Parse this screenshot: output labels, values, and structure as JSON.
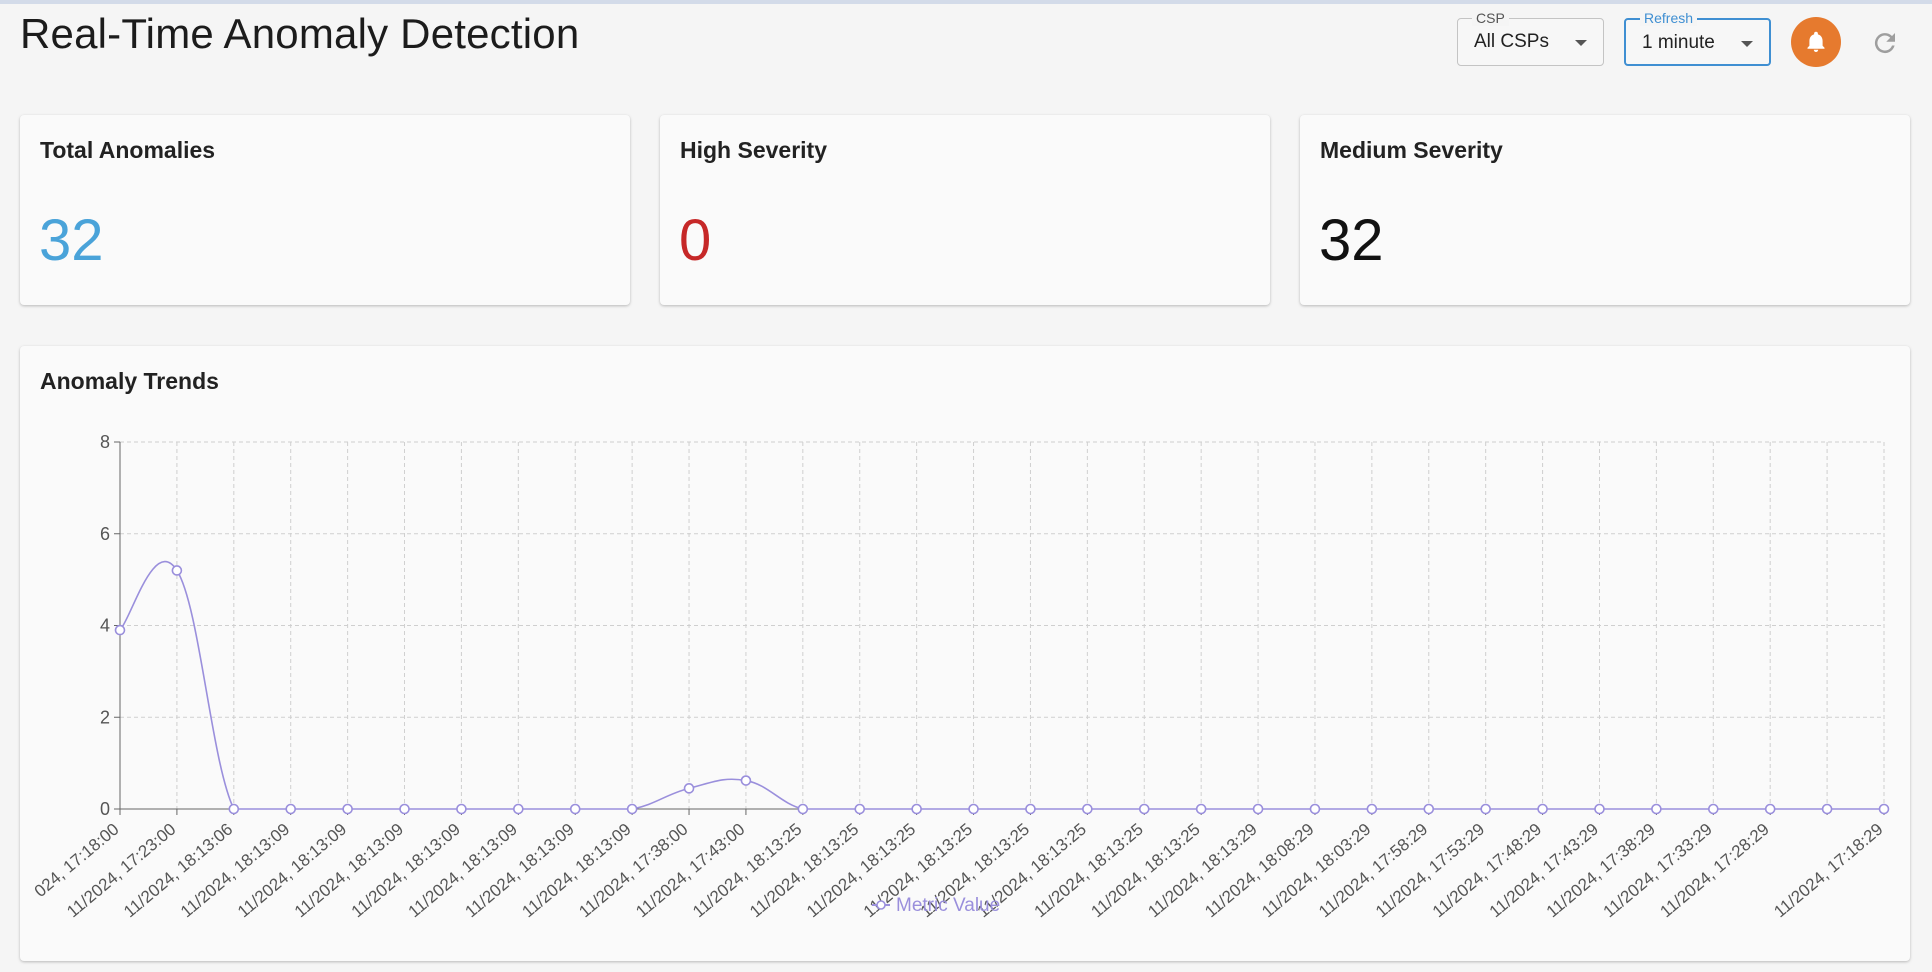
{
  "header": {
    "title": "Real-Time Anomaly Detection",
    "csp_select": {
      "legend": "CSP",
      "value": "All CSPs"
    },
    "refresh_select": {
      "legend": "Refresh",
      "value": "1 minute"
    },
    "notifications_icon": "bell-icon",
    "reload_icon": "refresh-icon"
  },
  "stats": [
    {
      "label": "Total Anomalies",
      "value": "32",
      "color": "#4aa3d9"
    },
    {
      "label": "High Severity",
      "value": "0",
      "color": "#c62828"
    },
    {
      "label": "Medium Severity",
      "value": "32",
      "color": "#111111"
    }
  ],
  "chart": {
    "title": "Anomaly Trends",
    "legend_label": "Metric Value",
    "line_color": "#9a8fdc"
  },
  "chart_data": {
    "type": "line",
    "title": "Anomaly Trends",
    "xlabel": "",
    "ylabel": "",
    "ylim": [
      0,
      8
    ],
    "yticks": [
      0,
      2,
      4,
      6,
      8
    ],
    "grid": true,
    "legend": "bottom",
    "categories": [
      "024, 17:18:00",
      "11/2024, 17:23:00",
      "11/2024, 18:13:06",
      "11/2024, 18:13:09",
      "11/2024, 18:13:09",
      "11/2024, 18:13:09",
      "11/2024, 18:13:09",
      "11/2024, 18:13:09",
      "11/2024, 18:13:09",
      "11/2024, 18:13:09",
      "11/2024, 17:38:00",
      "11/2024, 17:43:00",
      "11/2024, 18:13:25",
      "11/2024, 18:13:25",
      "11/2024, 18:13:25",
      "11/2024, 18:13:25",
      "11/2024, 18:13:25",
      "11/2024, 18:13:25",
      "11/2024, 18:13:25",
      "11/2024, 18:13:25",
      "11/2024, 18:13:29",
      "11/2024, 18:08:29",
      "11/2024, 18:03:29",
      "11/2024, 17:58:29",
      "11/2024, 17:53:29",
      "11/2024, 17:48:29",
      "11/2024, 17:43:29",
      "11/2024, 17:38:29",
      "11/2024, 17:33:29",
      "11/2024, 17:28:29",
      "",
      "11/2024, 17:18:29"
    ],
    "series": [
      {
        "name": "Metric Value",
        "values": [
          3.9,
          5.2,
          0,
          0,
          0,
          0,
          0,
          0,
          0,
          0,
          0.45,
          0.62,
          0,
          0,
          0,
          0,
          0,
          0,
          0,
          0,
          0,
          0,
          0,
          0,
          0,
          0,
          0,
          0,
          0,
          0,
          0,
          0
        ]
      }
    ]
  }
}
